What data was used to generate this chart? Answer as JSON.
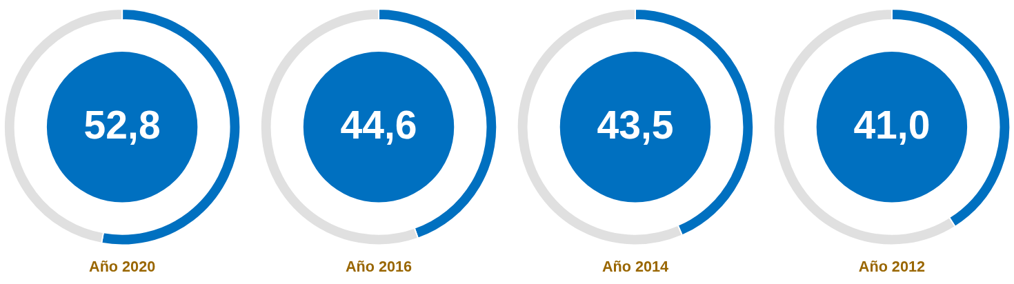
{
  "chart_data": [
    {
      "type": "donut",
      "title": "Año 2020",
      "categories": [
        null,
        null
      ],
      "values": [
        52.8,
        47.2
      ],
      "colors": [
        "#0070c0",
        "#e0e0e0"
      ],
      "annotations": [
        "52,8"
      ]
    },
    {
      "type": "donut",
      "title": "Año 2016",
      "categories": [
        null,
        null
      ],
      "values": [
        44.6,
        55.4
      ],
      "colors": [
        "#0070c0",
        "#e0e0e0"
      ],
      "annotations": [
        "44,6"
      ]
    },
    {
      "type": "donut",
      "title": "Año 2014",
      "categories": [
        null,
        null
      ],
      "values": [
        43.5,
        56.5
      ],
      "colors": [
        "#0070c0",
        "#e0e0e0"
      ],
      "annotations": [
        "43,5"
      ]
    },
    {
      "type": "donut",
      "title": "Año 2012",
      "categories": [
        null,
        null
      ],
      "values": [
        41.0,
        59.0
      ],
      "colors": [
        "#0070c0",
        "#e0e0e0"
      ],
      "annotations": [
        "41,0"
      ]
    }
  ]
}
